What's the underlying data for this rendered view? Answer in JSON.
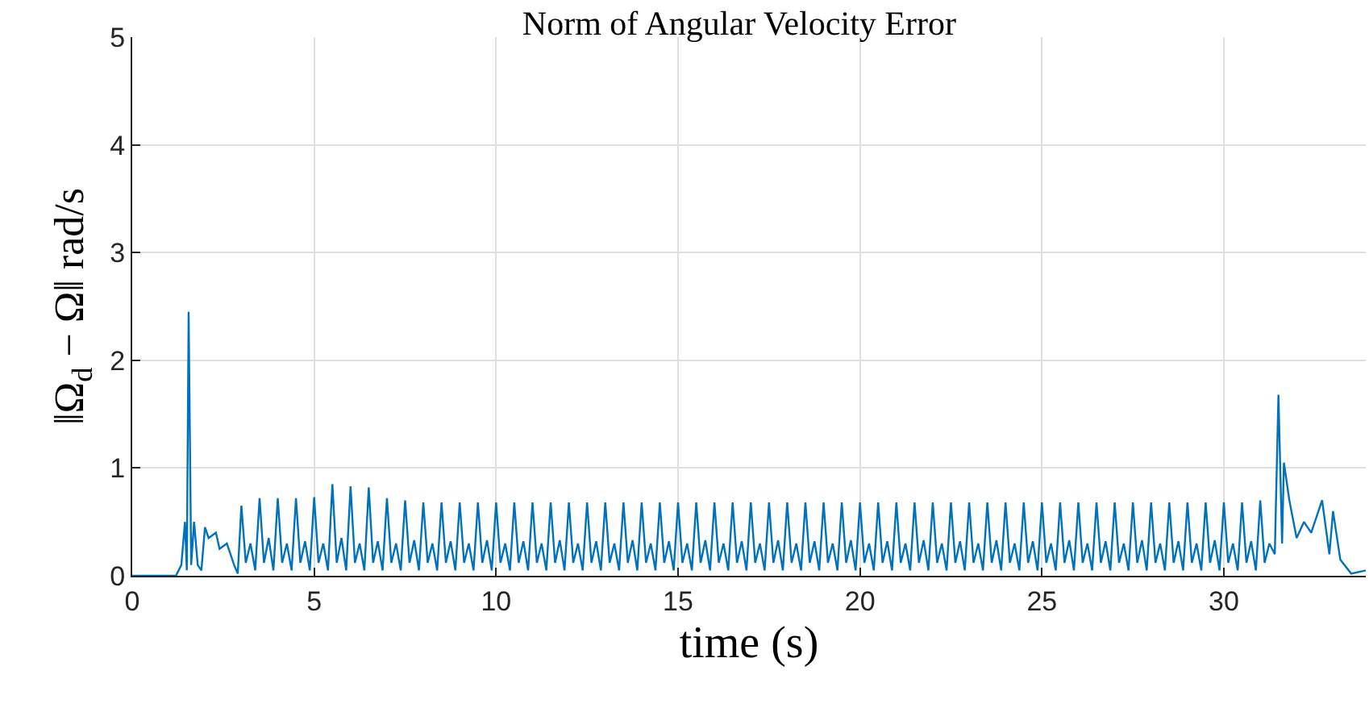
{
  "chart_data": {
    "type": "line",
    "title": "Norm of Angular Velocity Error",
    "xlabel": "time (s)",
    "ylabel": "‖Ω$_{d}$ − Ω‖ rad/s",
    "xlim": [
      0,
      33.9
    ],
    "ylim": [
      0,
      5
    ],
    "xticks": [
      0,
      5,
      10,
      15,
      20,
      25,
      30
    ],
    "yticks": [
      0,
      1,
      2,
      3,
      4,
      5
    ],
    "grid": true,
    "marker": "none",
    "line_style": "solid",
    "series": [
      {
        "color": "#0072bd",
        "x": [
          0,
          1.2,
          1.35,
          1.45,
          1.5,
          1.55,
          1.62,
          1.7,
          1.8,
          1.9,
          2.0,
          2.1,
          2.3,
          2.4,
          2.6,
          2.8,
          2.9,
          3.0,
          3.12,
          3.25,
          3.38,
          3.5,
          3.62,
          3.75,
          3.88,
          4.0,
          4.12,
          4.25,
          4.38,
          4.5,
          4.62,
          4.75,
          4.88,
          5.0,
          5.12,
          5.25,
          5.38,
          5.5,
          5.62,
          5.75,
          5.88,
          6.0,
          6.12,
          6.25,
          6.38,
          6.5,
          6.62,
          6.75,
          6.88,
          7.0,
          7.12,
          7.25,
          7.38,
          7.5,
          7.62,
          7.75,
          7.88,
          8.0,
          8.12,
          8.25,
          8.38,
          8.5,
          8.62,
          8.75,
          8.88,
          9.0,
          9.12,
          9.25,
          9.38,
          9.5,
          9.62,
          9.75,
          9.88,
          10.0,
          10.12,
          10.25,
          10.38,
          10.5,
          10.62,
          10.75,
          10.88,
          11.0,
          11.12,
          11.25,
          11.38,
          11.5,
          11.62,
          11.75,
          11.88,
          12.0,
          12.12,
          12.25,
          12.38,
          12.5,
          12.62,
          12.75,
          12.88,
          13.0,
          13.12,
          13.25,
          13.38,
          13.5,
          13.62,
          13.75,
          13.88,
          14.0,
          14.12,
          14.25,
          14.38,
          14.5,
          14.62,
          14.75,
          14.88,
          15.0,
          15.12,
          15.25,
          15.38,
          15.5,
          15.62,
          15.75,
          15.88,
          16.0,
          16.12,
          16.25,
          16.38,
          16.5,
          16.62,
          16.75,
          16.88,
          17.0,
          17.12,
          17.25,
          17.38,
          17.5,
          17.62,
          17.75,
          17.88,
          18.0,
          18.12,
          18.25,
          18.38,
          18.5,
          18.62,
          18.75,
          18.88,
          19.0,
          19.12,
          19.25,
          19.38,
          19.5,
          19.62,
          19.75,
          19.88,
          20.0,
          20.12,
          20.25,
          20.38,
          20.5,
          20.62,
          20.75,
          20.88,
          21.0,
          21.12,
          21.25,
          21.38,
          21.5,
          21.62,
          21.75,
          21.88,
          22.0,
          22.12,
          22.25,
          22.38,
          22.5,
          22.62,
          22.75,
          22.88,
          23.0,
          23.12,
          23.25,
          23.38,
          23.5,
          23.62,
          23.75,
          23.88,
          24.0,
          24.12,
          24.25,
          24.38,
          24.5,
          24.62,
          24.75,
          24.88,
          25.0,
          25.12,
          25.25,
          25.38,
          25.5,
          25.62,
          25.75,
          25.88,
          26.0,
          26.12,
          26.25,
          26.38,
          26.5,
          26.62,
          26.75,
          26.88,
          27.0,
          27.12,
          27.25,
          27.38,
          27.5,
          27.62,
          27.75,
          27.88,
          28.0,
          28.12,
          28.25,
          28.38,
          28.5,
          28.62,
          28.75,
          28.88,
          29.0,
          29.12,
          29.25,
          29.38,
          29.5,
          29.62,
          29.75,
          29.88,
          30.0,
          30.12,
          30.25,
          30.38,
          30.5,
          30.62,
          30.75,
          30.88,
          31.0,
          31.12,
          31.25,
          31.4,
          31.5,
          31.6,
          31.65,
          31.8,
          32.0,
          32.2,
          32.4,
          32.6,
          32.7,
          32.9,
          33.0,
          33.2,
          33.5,
          33.9
        ],
        "values": [
          0,
          0,
          0.1,
          0.5,
          0.05,
          2.45,
          0.1,
          0.5,
          0.1,
          0.05,
          0.45,
          0.35,
          0.4,
          0.25,
          0.3,
          0.1,
          0.02,
          0.65,
          0.12,
          0.3,
          0.05,
          0.72,
          0.12,
          0.35,
          0.05,
          0.72,
          0.12,
          0.3,
          0.05,
          0.72,
          0.12,
          0.32,
          0.05,
          0.73,
          0.12,
          0.3,
          0.05,
          0.85,
          0.12,
          0.35,
          0.05,
          0.83,
          0.12,
          0.3,
          0.05,
          0.82,
          0.12,
          0.32,
          0.05,
          0.72,
          0.12,
          0.3,
          0.05,
          0.7,
          0.12,
          0.33,
          0.05,
          0.68,
          0.12,
          0.3,
          0.05,
          0.68,
          0.12,
          0.32,
          0.05,
          0.68,
          0.12,
          0.3,
          0.05,
          0.68,
          0.12,
          0.33,
          0.05,
          0.68,
          0.12,
          0.3,
          0.05,
          0.68,
          0.12,
          0.32,
          0.05,
          0.68,
          0.12,
          0.3,
          0.05,
          0.68,
          0.12,
          0.33,
          0.05,
          0.68,
          0.12,
          0.3,
          0.05,
          0.68,
          0.12,
          0.32,
          0.05,
          0.68,
          0.12,
          0.3,
          0.05,
          0.68,
          0.12,
          0.33,
          0.05,
          0.68,
          0.12,
          0.3,
          0.05,
          0.68,
          0.12,
          0.32,
          0.05,
          0.68,
          0.12,
          0.3,
          0.05,
          0.68,
          0.12,
          0.33,
          0.05,
          0.68,
          0.12,
          0.3,
          0.05,
          0.68,
          0.12,
          0.32,
          0.05,
          0.68,
          0.12,
          0.3,
          0.05,
          0.68,
          0.12,
          0.33,
          0.05,
          0.68,
          0.12,
          0.3,
          0.05,
          0.68,
          0.12,
          0.32,
          0.05,
          0.68,
          0.12,
          0.3,
          0.05,
          0.68,
          0.12,
          0.33,
          0.05,
          0.68,
          0.12,
          0.3,
          0.05,
          0.68,
          0.12,
          0.32,
          0.05,
          0.68,
          0.12,
          0.3,
          0.05,
          0.68,
          0.12,
          0.33,
          0.05,
          0.68,
          0.12,
          0.3,
          0.05,
          0.68,
          0.12,
          0.32,
          0.05,
          0.68,
          0.12,
          0.3,
          0.05,
          0.68,
          0.12,
          0.33,
          0.05,
          0.68,
          0.12,
          0.3,
          0.05,
          0.68,
          0.12,
          0.32,
          0.05,
          0.68,
          0.12,
          0.3,
          0.05,
          0.68,
          0.12,
          0.33,
          0.05,
          0.68,
          0.12,
          0.3,
          0.05,
          0.68,
          0.12,
          0.32,
          0.05,
          0.68,
          0.12,
          0.3,
          0.05,
          0.68,
          0.12,
          0.33,
          0.05,
          0.68,
          0.12,
          0.3,
          0.05,
          0.68,
          0.12,
          0.32,
          0.05,
          0.68,
          0.12,
          0.3,
          0.05,
          0.68,
          0.12,
          0.33,
          0.05,
          0.68,
          0.12,
          0.3,
          0.05,
          0.68,
          0.12,
          0.32,
          0.05,
          0.7,
          0.12,
          0.3,
          0.2,
          1.68,
          0.3,
          1.05,
          0.7,
          0.35,
          0.5,
          0.4,
          0.6,
          0.7,
          0.2,
          0.6,
          0.15,
          0.02,
          0.05
        ]
      }
    ]
  }
}
